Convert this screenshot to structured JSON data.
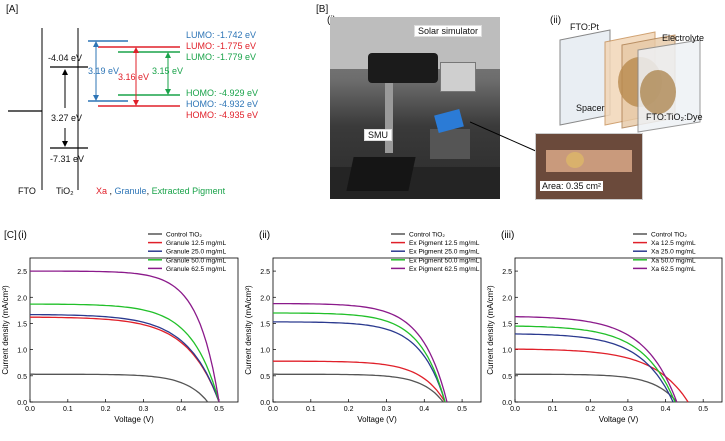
{
  "panelA": {
    "tag": "[A]",
    "fto_label": "FTO",
    "tio2_label": "TiO₂",
    "cb_value": "-4.04 eV",
    "gap_value": "3.27 eV",
    "vb_value": "-7.31 eV",
    "gap_blue": "3.19 eV",
    "gap_red": "3.16 eV",
    "gap_green": "3.15 eV",
    "lumo": [
      {
        "text": "LUMO: -1.742 eV",
        "color": "#2e75b6"
      },
      {
        "text": "LUMO: -1.775 eV",
        "color": "#e0202a"
      },
      {
        "text": "LUMO: -1.779 eV",
        "color": "#1aa34a"
      }
    ],
    "homo": [
      {
        "text": "HOMO: -4.929 eV",
        "color": "#1aa34a"
      },
      {
        "text": "HOMO: -4.932 eV",
        "color": "#2e75b6"
      },
      {
        "text": "HOMO: -4.935 eV",
        "color": "#e0202a"
      }
    ],
    "legend_xa": "Xa",
    "legend_comma1": " , ",
    "legend_granule": "Granule",
    "legend_comma2": ", ",
    "legend_pigment": "Extracted Pigment",
    "colors": {
      "xa": "#e0202a",
      "granule": "#2e75b6",
      "pigment": "#1aa34a"
    }
  },
  "panelB": {
    "tag": "[B]",
    "sub_i": "(i)",
    "sub_ii": "(ii)",
    "solar_simulator": "Solar simulator",
    "smu": "SMU",
    "area": "Area: 0.35 cm²",
    "fto_pt": "FTO:Pt",
    "electrolyte": "Electrolyte",
    "spacer": "Spacer",
    "fto_tio2": "FTO:TiO₂:Dye"
  },
  "panelC": {
    "tag": "[C]",
    "ylabel": "Current density (mA/cm²)",
    "xlabel": "Voltage (V)"
  },
  "chart_data": [
    {
      "type": "line",
      "sub": "(i)",
      "xlabel": "Voltage (V)",
      "ylabel": "Current density (mA/cm²)",
      "xlim": [
        0,
        0.55
      ],
      "ylim": [
        0,
        2.75
      ],
      "xticks": [
        "0.0",
        "0.1",
        "0.2",
        "0.3",
        "0.4",
        "0.5"
      ],
      "yticks": [
        "0.0",
        "0.5",
        "1.0",
        "1.5",
        "2.0",
        "2.5"
      ],
      "legend_position": "top-center",
      "series": [
        {
          "name": "Control TiO₂",
          "color": "#555555",
          "jsc": 0.53,
          "voc": 0.47,
          "k": 8
        },
        {
          "name": "Granule 12.5 mg/mL",
          "color": "#e0202a",
          "jsc": 1.62,
          "voc": 0.5,
          "k": 6
        },
        {
          "name": "Granule 25.0 mg/mL",
          "color": "#2b3a8f",
          "jsc": 1.67,
          "voc": 0.5,
          "k": 6
        },
        {
          "name": "Granule 50.0 mg/mL",
          "color": "#22c02a",
          "jsc": 1.87,
          "voc": 0.5,
          "k": 7
        },
        {
          "name": "Granule 62.5 mg/mL",
          "color": "#8b1a8b",
          "jsc": 2.5,
          "voc": 0.5,
          "k": 9
        }
      ]
    },
    {
      "type": "line",
      "sub": "(ii)",
      "xlabel": "Voltage (V)",
      "ylabel": "Current density (mA/cm²)",
      "xlim": [
        0,
        0.55
      ],
      "ylim": [
        0,
        2.75
      ],
      "xticks": [
        "0.0",
        "0.1",
        "0.2",
        "0.3",
        "0.4",
        "0.5"
      ],
      "yticks": [
        "0.0",
        "0.5",
        "1.0",
        "1.5",
        "2.0",
        "2.5"
      ],
      "legend_position": "top-center",
      "series": [
        {
          "name": "Control TiO₂",
          "color": "#555555",
          "jsc": 0.53,
          "voc": 0.45,
          "k": 8
        },
        {
          "name": "Ex Pigment 12.5 mg/mL",
          "color": "#e0202a",
          "jsc": 0.78,
          "voc": 0.455,
          "k": 7
        },
        {
          "name": "Ex Pigment 25.0 mg/mL",
          "color": "#2b3a8f",
          "jsc": 1.53,
          "voc": 0.455,
          "k": 7
        },
        {
          "name": "Ex Pigment 50.0 mg/mL",
          "color": "#22c02a",
          "jsc": 1.7,
          "voc": 0.455,
          "k": 7
        },
        {
          "name": "Ex Pigment 62.5 mg/mL",
          "color": "#8b1a8b",
          "jsc": 1.88,
          "voc": 0.46,
          "k": 7
        }
      ]
    },
    {
      "type": "line",
      "sub": "(iii)",
      "xlabel": "Voltage (V)",
      "ylabel": "Current density (mA/cm²)",
      "xlim": [
        0,
        0.55
      ],
      "ylim": [
        0,
        2.75
      ],
      "xticks": [
        "0.0",
        "0.1",
        "0.2",
        "0.3",
        "0.4",
        "0.5"
      ],
      "yticks": [
        "0.0",
        "0.5",
        "1.0",
        "1.5",
        "2.0",
        "2.5"
      ],
      "legend_position": "top-right",
      "series": [
        {
          "name": "Control TiO₂",
          "color": "#555555",
          "jsc": 0.53,
          "voc": 0.43,
          "k": 7
        },
        {
          "name": "Xa 12.5 mg/mL",
          "color": "#e0202a",
          "jsc": 1.01,
          "voc": 0.46,
          "k": 5
        },
        {
          "name": "Xa 25.0 mg/mL",
          "color": "#2b3a8f",
          "jsc": 1.3,
          "voc": 0.42,
          "k": 5
        },
        {
          "name": "Xa 50.0 mg/mL",
          "color": "#22c02a",
          "jsc": 1.45,
          "voc": 0.425,
          "k": 5
        },
        {
          "name": "Xa 62.5 mg/mL",
          "color": "#8b1a8b",
          "jsc": 1.63,
          "voc": 0.43,
          "k": 5
        }
      ]
    }
  ]
}
